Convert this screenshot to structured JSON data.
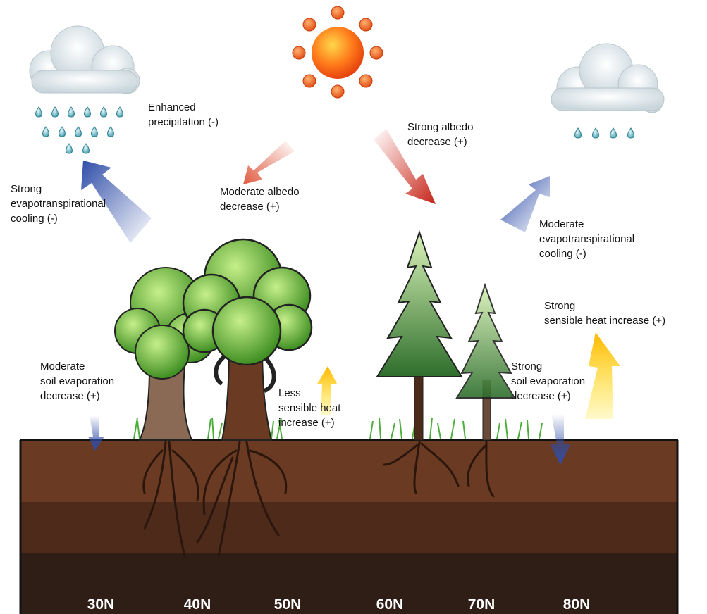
{
  "annotations": [
    {
      "lines": [
        "Enhanced",
        "precipitation (-)"
      ]
    },
    {
      "lines": [
        "Strong",
        "evapotranspirational",
        "cooling (-)"
      ]
    },
    {
      "lines": [
        "Moderate albedo",
        "decrease (+)"
      ]
    },
    {
      "lines": [
        "Strong albedo",
        "decrease (+)"
      ]
    },
    {
      "lines": [
        "Moderate",
        "evapotranspirational",
        "cooling (-)"
      ]
    },
    {
      "lines": [
        "Strong",
        "sensible heat increase (+)"
      ]
    },
    {
      "lines": [
        "Moderate",
        "soil evaporation",
        "decrease (+)"
      ]
    },
    {
      "lines": [
        "Less",
        "sensible heat",
        "increase (+)"
      ]
    },
    {
      "lines": [
        "Strong",
        "soil evaporation",
        "decrease (+)"
      ]
    }
  ],
  "latitudes": [
    "30N",
    "40N",
    "50N",
    "60N",
    "70N",
    "80N"
  ]
}
